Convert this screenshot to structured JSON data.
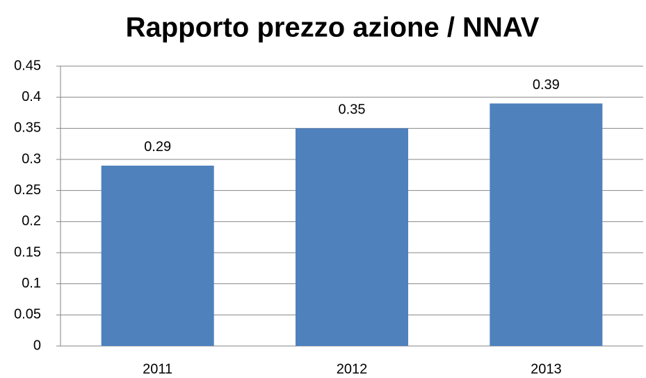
{
  "chart_data": {
    "type": "bar",
    "title": "Rapporto prezzo azione / NNAV",
    "categories": [
      "2011",
      "2012",
      "2013"
    ],
    "values": [
      0.29,
      0.35,
      0.39
    ],
    "color": "#4f81bd",
    "ylim": [
      0,
      0.45
    ],
    "yticks": [
      0,
      0.05,
      0.1,
      0.15,
      0.2,
      0.25,
      0.3,
      0.35,
      0.4,
      0.45
    ],
    "grid": true
  }
}
